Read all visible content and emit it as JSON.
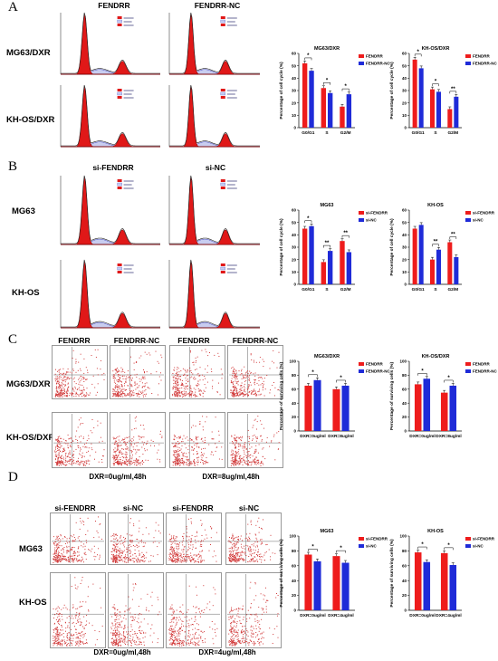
{
  "panels": {
    "A": {
      "label": "A",
      "cols": [
        "FENDRR",
        "FENDRR-NC"
      ],
      "rows": [
        "MG63/DXR",
        "KH-OS/DXR"
      ]
    },
    "B": {
      "label": "B",
      "cols": [
        "si-FENDRR",
        "si-NC"
      ],
      "rows": [
        "MG63",
        "KH-OS"
      ]
    },
    "C": {
      "label": "C",
      "cols": [
        "FENDRR",
        "FENDRR-NC",
        "FENDRR",
        "FENDRR-NC"
      ],
      "rows": [
        "MG63/DXR",
        "KH-OS/DXR"
      ],
      "conditions": [
        "DXR=0ug/ml,48h",
        "DXR=8ug/ml,48h"
      ]
    },
    "D": {
      "label": "D",
      "cols": [
        "si-FENDRR",
        "si-NC",
        "si-FENDRR",
        "si-NC"
      ],
      "rows": [
        "MG63",
        "KH-OS"
      ],
      "conditions": [
        "DXR=0ug/ml,48h",
        "DXR=4ug/ml,48h"
      ]
    }
  },
  "chart_data": [
    {
      "type": "bar",
      "title": "MG63/DXR",
      "ylabel": "Percentage of cell cycle (%)",
      "categories": [
        "G0/G1",
        "S",
        "G2/M"
      ],
      "ylim": [
        0,
        60
      ],
      "ticks": [
        0,
        10,
        20,
        30,
        40,
        50,
        60
      ],
      "series": [
        {
          "name": "FENDRR",
          "values": [
            52,
            32,
            17
          ]
        },
        {
          "name": "FENDRR-NC",
          "values": [
            46,
            28,
            27
          ]
        }
      ],
      "sig": [
        "*",
        "*",
        "*"
      ]
    },
    {
      "type": "bar",
      "title": "KH-OS/DXR",
      "ylabel": "Percentage of cell cycle (%)",
      "categories": [
        "G0/G1",
        "S",
        "G2/M"
      ],
      "ylim": [
        0,
        60
      ],
      "ticks": [
        0,
        10,
        20,
        30,
        40,
        50,
        60
      ],
      "series": [
        {
          "name": "FENDRR",
          "values": [
            55,
            31,
            15
          ]
        },
        {
          "name": "FENDRR-NC",
          "values": [
            48,
            29,
            25
          ]
        }
      ],
      "sig": [
        "*",
        "*",
        "**"
      ]
    },
    {
      "type": "bar",
      "title": "MG63",
      "ylabel": "Percentage of cell cycle (%)",
      "categories": [
        "G0/G1",
        "S",
        "G2/M"
      ],
      "ylim": [
        0,
        60
      ],
      "ticks": [
        0,
        10,
        20,
        30,
        40,
        50,
        60
      ],
      "series": [
        {
          "name": "si-FENDRR",
          "values": [
            45,
            18,
            35
          ]
        },
        {
          "name": "si-NC",
          "values": [
            47,
            27,
            26
          ]
        }
      ],
      "sig": [
        "*",
        "**",
        "**"
      ]
    },
    {
      "type": "bar",
      "title": "KH-OS",
      "ylabel": "Percentage of cell cycle (%)",
      "categories": [
        "G0/G1",
        "S",
        "G2/M"
      ],
      "ylim": [
        0,
        60
      ],
      "ticks": [
        0,
        10,
        20,
        30,
        40,
        50,
        60
      ],
      "series": [
        {
          "name": "si-FENDRR",
          "values": [
            45,
            20,
            34
          ]
        },
        {
          "name": "si-NC",
          "values": [
            48,
            28,
            22
          ]
        }
      ],
      "sig": [
        "",
        "**",
        "**"
      ]
    },
    {
      "type": "bar",
      "title": "MG63/DXR",
      "ylabel": "Percentage of surviving cells (%)",
      "categories": [
        "DXR=0ug/ml",
        "DXR=8ug/ml"
      ],
      "ylim": [
        0,
        100
      ],
      "ticks": [
        0,
        20,
        40,
        60,
        80,
        100
      ],
      "series": [
        {
          "name": "FENDRR",
          "values": [
            65,
            60
          ]
        },
        {
          "name": "FENDRR-NC",
          "values": [
            73,
            65
          ]
        }
      ],
      "sig": [
        "*",
        "*"
      ]
    },
    {
      "type": "bar",
      "title": "KH-OS/DXR",
      "ylabel": "Percentage of surviving cells (%)",
      "categories": [
        "DXR=0ug/ml",
        "DXR=8ug/ml"
      ],
      "ylim": [
        0,
        100
      ],
      "ticks": [
        0,
        20,
        40,
        60,
        80,
        100
      ],
      "series": [
        {
          "name": "FENDRR",
          "values": [
            67,
            55
          ]
        },
        {
          "name": "FENDRR-NC",
          "values": [
            75,
            65
          ]
        }
      ],
      "sig": [
        "*",
        "*"
      ]
    },
    {
      "type": "bar",
      "title": "MG63",
      "ylabel": "Percentage of surviving cells (%)",
      "categories": [
        "DXR=0ug/ml",
        "DXR=4ug/ml"
      ],
      "ylim": [
        0,
        100
      ],
      "ticks": [
        0,
        20,
        40,
        60,
        80,
        100
      ],
      "series": [
        {
          "name": "si-FENDRR",
          "values": [
            75,
            73
          ]
        },
        {
          "name": "si-NC",
          "values": [
            66,
            64
          ]
        }
      ],
      "sig": [
        "*",
        "*"
      ]
    },
    {
      "type": "bar",
      "title": "KH-OS",
      "ylabel": "Percentage of surviving cells (%)",
      "categories": [
        "DXR=0ug/ml",
        "DXR=4ug/ml"
      ],
      "ylim": [
        0,
        100
      ],
      "ticks": [
        0,
        20,
        40,
        60,
        80,
        100
      ],
      "series": [
        {
          "name": "si-FENDRR",
          "values": [
            78,
            77
          ]
        },
        {
          "name": "si-NC",
          "values": [
            65,
            61
          ]
        }
      ],
      "sig": [
        "*",
        "*"
      ]
    }
  ],
  "colors": {
    "red": "#ee1c1c",
    "blue": "#1f2bd8",
    "hist_red": "#e01818",
    "dot": "#d23c3c"
  }
}
